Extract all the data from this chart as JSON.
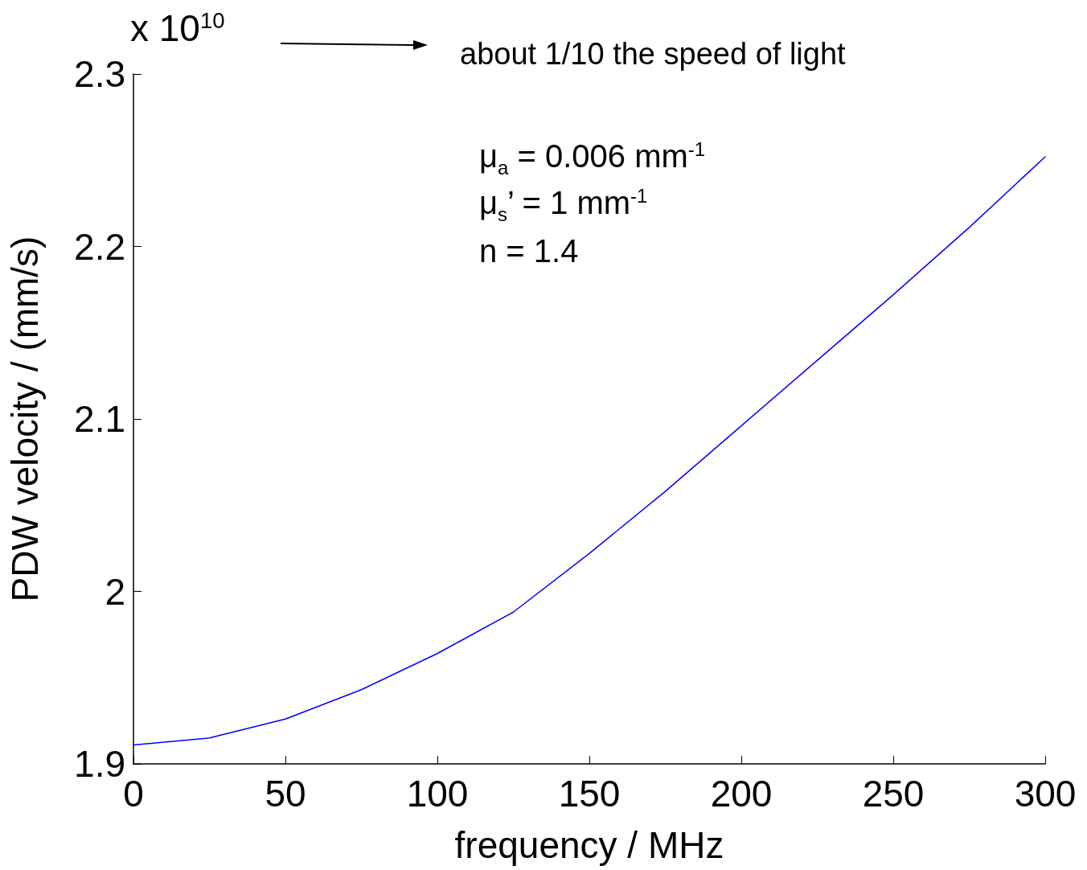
{
  "chart_data": {
    "type": "line",
    "xlabel": "frequency / MHz",
    "ylabel": "PDW velocity / (mm/s)",
    "x": [
      0,
      25,
      50,
      75,
      100,
      125,
      150,
      175,
      200,
      225,
      250,
      275,
      300
    ],
    "series": [
      {
        "color": "#0000ff",
        "values": [
          1.911,
          1.915,
          1.926,
          1.943,
          1.964,
          1.988,
          2.022,
          2.058,
          2.096,
          2.134,
          2.172,
          2.211,
          2.252
        ]
      }
    ],
    "xlim": [
      0,
      300
    ],
    "xticks": [
      0,
      50,
      100,
      150,
      200,
      250,
      300
    ],
    "ylim": [
      1.9,
      2.3
    ],
    "yticks": [
      1.9,
      2,
      2.1,
      2.2,
      2.3
    ],
    "grid": false,
    "marker": "none",
    "line_style": "solid",
    "annotations": [
      "x 10$^{10}$",
      "about 1/10 the speed of light",
      "μ$_{a}$ = 0.006 mm$^{-1}$",
      "μ$_{s}$’ = 1 mm$^{-1}$",
      "n = 1.4"
    ]
  }
}
